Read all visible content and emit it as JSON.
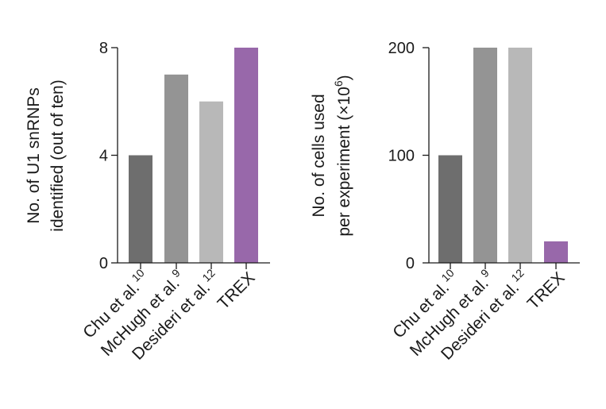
{
  "chart_data": [
    {
      "type": "bar",
      "categories": [
        {
          "name": "Chu et al.",
          "ref": "10"
        },
        {
          "name": "McHugh et al.",
          "ref": "9"
        },
        {
          "name": "Desideri et al.",
          "ref": "12"
        },
        {
          "name": "TREX",
          "ref": ""
        }
      ],
      "values": [
        4,
        7,
        6,
        8
      ],
      "colors": [
        "#6e6e6e",
        "#949494",
        "#b8b8b8",
        "#9868aa"
      ],
      "ylabel_lines": [
        "No. of U1 snRNPs",
        "identified (out of ten)"
      ],
      "ylim": [
        0,
        8
      ],
      "yticks": [
        "0",
        "4",
        "8"
      ],
      "xlabel": "",
      "grid": false
    },
    {
      "type": "bar",
      "categories": [
        {
          "name": "Chu et al.",
          "ref": "10"
        },
        {
          "name": "McHugh et al.",
          "ref": "9"
        },
        {
          "name": "Desideri et al.",
          "ref": "12"
        },
        {
          "name": "TREX",
          "ref": ""
        }
      ],
      "values": [
        100,
        200,
        200,
        20
      ],
      "colors": [
        "#6e6e6e",
        "#949494",
        "#b8b8b8",
        "#9868aa"
      ],
      "ylabel_lines": [
        "No. of cells used",
        "per experiment (×10",
        "6",
        ")"
      ],
      "ylim": [
        0,
        200
      ],
      "yticks": [
        "0",
        "100",
        "200"
      ],
      "xlabel": "",
      "grid": false
    }
  ]
}
